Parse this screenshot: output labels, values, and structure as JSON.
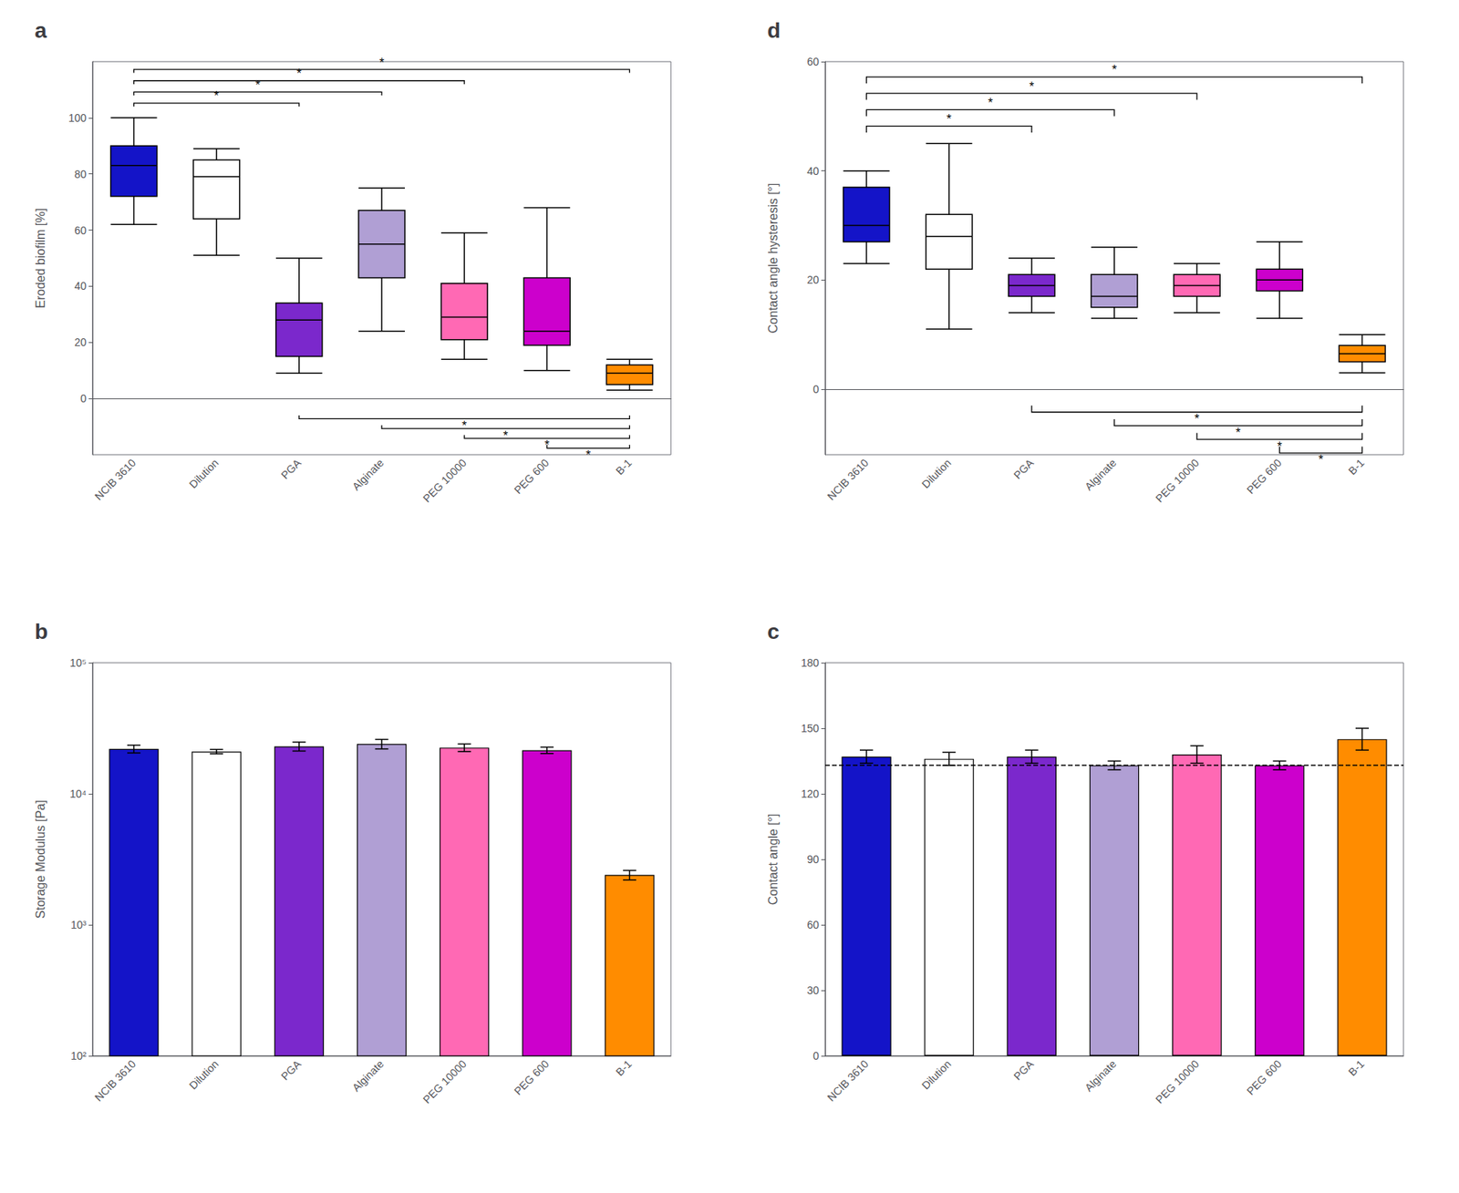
{
  "chart_data": [
    {
      "type": "boxplot",
      "title": "a",
      "ylabel": "Eroded biofilm [%]",
      "categories": [
        "NCIB 3610",
        "Dilution",
        "PGA",
        "Alginate",
        "PEG 10000",
        "PEG 600",
        "B-1"
      ],
      "colors": [
        "#1414c8",
        "#ffffff",
        "#7b28cc",
        "#b09fd4",
        "#ff69b4",
        "#cc00cc",
        "#ff8c00"
      ],
      "boxes": [
        {
          "q1": 72,
          "med": 83,
          "q3": 90,
          "whislo": 62,
          "whishi": 100
        },
        {
          "q1": 64,
          "med": 79,
          "q3": 85,
          "whislo": 51,
          "whishi": 89
        },
        {
          "q1": 15,
          "med": 28,
          "q3": 34,
          "whislo": 9,
          "whishi": 50
        },
        {
          "q1": 43,
          "med": 55,
          "q3": 67,
          "whislo": 24,
          "whishi": 75
        },
        {
          "q1": 21,
          "med": 29,
          "q3": 41,
          "whislo": 14,
          "whishi": 59
        },
        {
          "q1": 19,
          "med": 24,
          "q3": 43,
          "whislo": 10,
          "whishi": 68
        },
        {
          "q1": 5,
          "med": 9,
          "q3": 12,
          "whislo": 3,
          "whishi": 14
        }
      ],
      "annotations": [
        {
          "text": "*",
          "x1": "NCIB 3610",
          "x2": "PGA",
          "y": 104,
          "direction": "up"
        },
        {
          "text": "*",
          "x1": "NCIB 3610",
          "x2": "Alginate",
          "y": 108,
          "direction": "up"
        },
        {
          "text": "*",
          "x1": "NCIB 3610",
          "x2": "PEG 10000",
          "y": 112,
          "direction": "up"
        },
        {
          "text": "*",
          "x1": "NCIB 3610",
          "x2": "B-1",
          "y": 116,
          "direction": "up"
        },
        {
          "text": "*",
          "x1": "PGA",
          "x2": "B-1",
          "y": -6,
          "direction": "down"
        },
        {
          "text": "*",
          "x1": "Alginate",
          "x2": "B-1",
          "y": -9.5,
          "direction": "down"
        },
        {
          "text": "*",
          "x1": "PEG 10000",
          "x2": "B-1",
          "y": -13,
          "direction": "down"
        },
        {
          "text": "*",
          "x1": "PEG 600",
          "x2": "B-1",
          "y": -16.5,
          "direction": "down"
        }
      ],
      "ylim": [
        -20,
        120
      ],
      "yticks": [
        0,
        20,
        40,
        60,
        80,
        100
      ],
      "grid": false
    },
    {
      "type": "boxplot",
      "title": "d",
      "ylabel": "Contact angle hysteresis [°]",
      "categories": [
        "NCIB 3610",
        "Dilution",
        "PGA",
        "Alginate",
        "PEG 10000",
        "PEG 600",
        "B-1"
      ],
      "colors": [
        "#1414c8",
        "#ffffff",
        "#7b28cc",
        "#b09fd4",
        "#ff69b4",
        "#cc00cc",
        "#ff8c00"
      ],
      "boxes": [
        {
          "q1": 27,
          "med": 30,
          "q3": 37,
          "whislo": 23,
          "whishi": 40
        },
        {
          "q1": 22,
          "med": 28,
          "q3": 32,
          "whislo": 11,
          "whishi": 45
        },
        {
          "q1": 17,
          "med": 19,
          "q3": 21,
          "whislo": 14,
          "whishi": 24
        },
        {
          "q1": 15,
          "med": 17,
          "q3": 21,
          "whislo": 13,
          "whishi": 26
        },
        {
          "q1": 17,
          "med": 19,
          "q3": 21,
          "whislo": 14,
          "whishi": 23
        },
        {
          "q1": 18,
          "med": 20,
          "q3": 22,
          "whislo": 13,
          "whishi": 27
        },
        {
          "q1": 5,
          "med": 6.5,
          "q3": 8,
          "whislo": 3,
          "whishi": 10
        }
      ],
      "annotations": [
        {
          "text": "*",
          "x1": "NCIB 3610",
          "x2": "PGA",
          "y": 47,
          "direction": "up"
        },
        {
          "text": "*",
          "x1": "NCIB 3610",
          "x2": "Alginate",
          "y": 50,
          "direction": "up"
        },
        {
          "text": "*",
          "x1": "NCIB 3610",
          "x2": "PEG 10000",
          "y": 53,
          "direction": "up"
        },
        {
          "text": "*",
          "x1": "NCIB 3610",
          "x2": "B-1",
          "y": 56,
          "direction": "up"
        },
        {
          "text": "*",
          "x1": "PGA",
          "x2": "B-1",
          "y": -3,
          "direction": "down"
        },
        {
          "text": "*",
          "x1": "Alginate",
          "x2": "B-1",
          "y": -5.5,
          "direction": "down"
        },
        {
          "text": "*",
          "x1": "PEG 10000",
          "x2": "B-1",
          "y": -8,
          "direction": "down"
        },
        {
          "text": "*",
          "x1": "PEG 600",
          "x2": "B-1",
          "y": -10.5,
          "direction": "down"
        }
      ],
      "ylim": [
        -12,
        60
      ],
      "yticks": [
        0,
        20,
        40,
        60
      ],
      "grid": false
    },
    {
      "type": "bar",
      "title": "b",
      "ylabel": "Storage Modulus [Pa]",
      "categories": [
        "NCIB 3610",
        "Dilution",
        "PGA",
        "Alginate",
        "PEG 10000",
        "PEG 600",
        "B-1"
      ],
      "colors": [
        "#1414c8",
        "#ffffff",
        "#7b28cc",
        "#b09fd4",
        "#ff69b4",
        "#cc00cc",
        "#ff8c00"
      ],
      "values": [
        22000,
        21000,
        23000,
        24000,
        22500,
        21500,
        2400
      ],
      "errors": [
        1500,
        800,
        1800,
        2000,
        1500,
        1200,
        200
      ],
      "log": "y",
      "ylim": [
        100,
        100000
      ],
      "yticks": [
        {
          "value": 100,
          "label": "10²"
        },
        {
          "value": 1000,
          "label": "10³"
        },
        {
          "value": 10000,
          "label": "10⁴"
        },
        {
          "value": 100000,
          "label": "10⁵"
        }
      ],
      "grid": false
    },
    {
      "type": "bar",
      "title": "c",
      "ylabel": "Contact angle [°]",
      "categories": [
        "NCIB 3610",
        "Dilution",
        "PGA",
        "Alginate",
        "PEG 10000",
        "PEG 600",
        "B-1"
      ],
      "colors": [
        "#1414c8",
        "#ffffff",
        "#7b28cc",
        "#b09fd4",
        "#ff69b4",
        "#cc00cc",
        "#ff8c00"
      ],
      "values": [
        137,
        136,
        137,
        133,
        138,
        133,
        145
      ],
      "errors": [
        3,
        3,
        3,
        2,
        4,
        2,
        5
      ],
      "hline": 133,
      "ylim": [
        0,
        180
      ],
      "yticks": [
        0,
        30,
        60,
        90,
        120,
        150,
        180
      ],
      "grid": false
    }
  ]
}
